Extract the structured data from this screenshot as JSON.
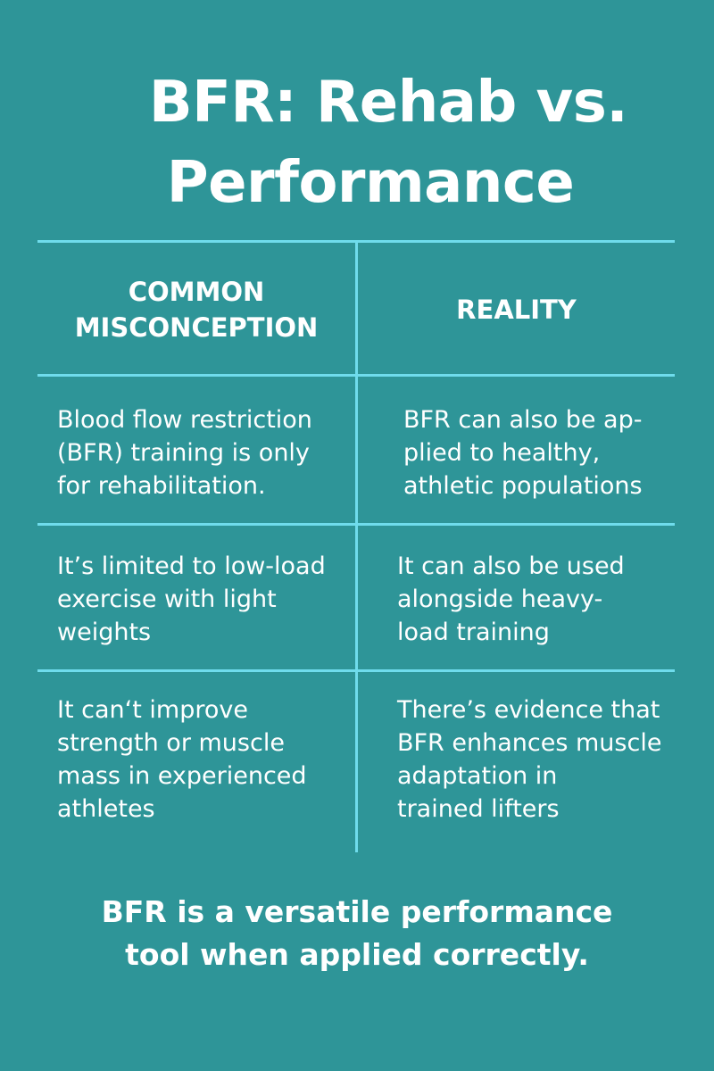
{
  "title": {
    "line1": "BFR: Rehab vs.",
    "line2": "Performance"
  },
  "table": {
    "headers": [
      "COMMON\nMISCONCEPTION",
      "REALITY"
    ],
    "rows": [
      {
        "misconception": "Blood flow restriction\n (BFR) training is only\n for rehabilitation.",
        "reality": "BFR can also be ap-\nplied to healthy,\nathletic populations"
      },
      {
        "misconception": "It’s limited to low-load\nexercise with light\nweights",
        "reality": "It can also be used\nalongside heavy-\nload training"
      },
      {
        "misconception": "It can‘t improve\nstrength or muscle\nmass in experienced\nathletes",
        "reality": "There’s evidence that\nBFR enhances muscle\nadaptation in\ntrained lifters"
      }
    ]
  },
  "footer": "BFR is a versatile performance\ntool when applied correctly.",
  "colors": {
    "background": "#2e9598",
    "lines": "#6fdcec",
    "text": "#ffffff"
  }
}
